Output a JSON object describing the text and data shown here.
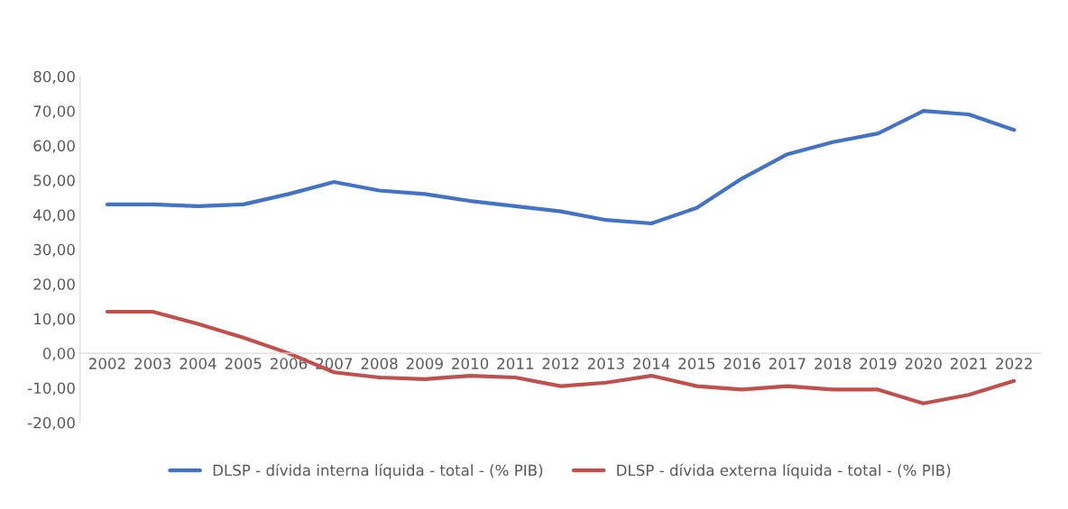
{
  "chart_data": {
    "type": "line",
    "categories": [
      "2002",
      "2003",
      "2004",
      "2005",
      "2006",
      "2007",
      "2008",
      "2009",
      "2010",
      "2011",
      "2012",
      "2013",
      "2014",
      "2015",
      "2016",
      "2017",
      "2018",
      "2019",
      "2020",
      "2021",
      "2022"
    ],
    "series": [
      {
        "name": "DLSP - dívida interna líquida - total - (% PIB)",
        "color": "#4472c4",
        "values": [
          43,
          43,
          42.5,
          43,
          46,
          49.5,
          47,
          46,
          44,
          42.5,
          41,
          38.5,
          37.5,
          42,
          50.5,
          57.5,
          61,
          63.5,
          70,
          69,
          64.5
        ]
      },
      {
        "name": "DLSP - dívida externa líquida - total - (% PIB)",
        "color": "#c0504d",
        "values": [
          12,
          12,
          8.5,
          4.5,
          0,
          -5.5,
          -7,
          -7.5,
          -6.5,
          -7,
          -9.5,
          -8.5,
          -6.5,
          -9.5,
          -10.5,
          -9.5,
          -10.5,
          -10.5,
          -14.5,
          -12,
          -8
        ]
      }
    ],
    "ylim": [
      -20,
      80
    ],
    "yticks": [
      {
        "value": -20,
        "label": "-20,00"
      },
      {
        "value": -10,
        "label": "-10,00"
      },
      {
        "value": 0,
        "label": "0,00"
      },
      {
        "value": 10,
        "label": "10,00"
      },
      {
        "value": 20,
        "label": "20,00"
      },
      {
        "value": 30,
        "label": "30,00"
      },
      {
        "value": 40,
        "label": "40,00"
      },
      {
        "value": 50,
        "label": "50,00"
      },
      {
        "value": 60,
        "label": "60,00"
      },
      {
        "value": 70,
        "label": "70,00"
      },
      {
        "value": 80,
        "label": "80,00"
      }
    ],
    "grid": false,
    "legend": "bottom",
    "marker": "none",
    "line_style": "solid"
  }
}
